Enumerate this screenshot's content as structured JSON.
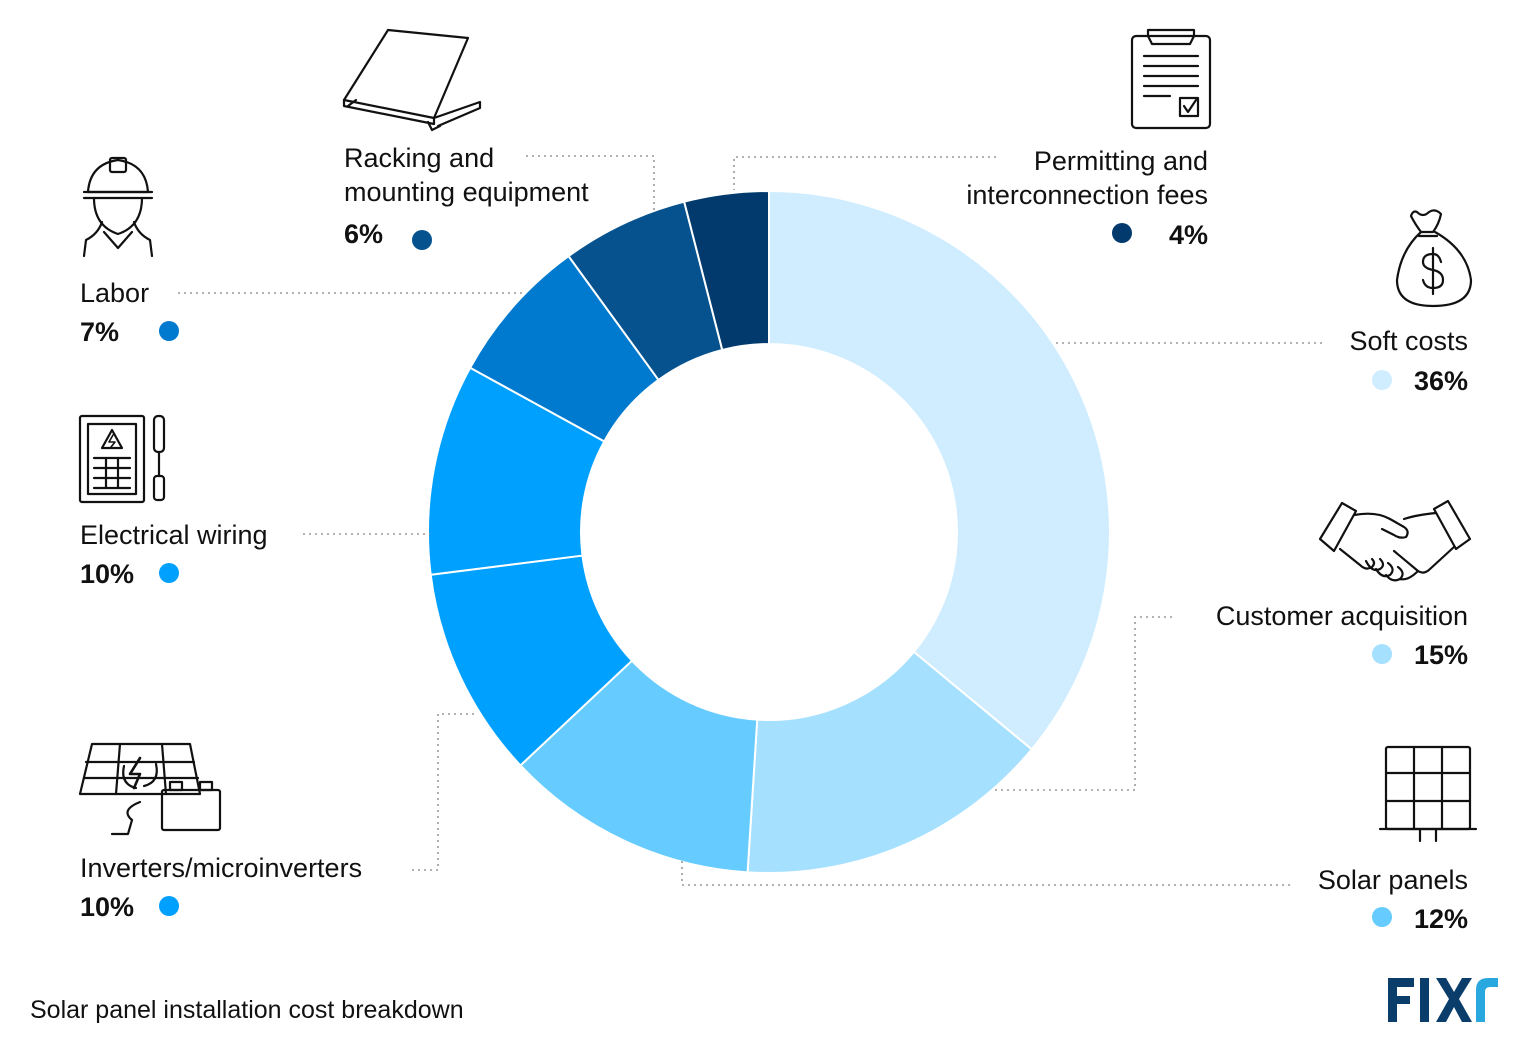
{
  "chart_data": {
    "type": "pie",
    "variant": "donut",
    "title": "Solar panel installation cost breakdown",
    "categories": [
      "Soft costs",
      "Customer acquisition",
      "Solar panels",
      "Inverters/microinverters",
      "Electrical wiring",
      "Labor",
      "Racking and mounting equipment",
      "Permitting and interconnection fees"
    ],
    "values": [
      36,
      15,
      12,
      10,
      10,
      7,
      6,
      4
    ],
    "value_labels": [
      "36%",
      "15%",
      "12%",
      "10%",
      "10%",
      "7%",
      "6%",
      "4%"
    ],
    "colors": [
      "#CFEDFF",
      "#A6E0FF",
      "#66CCFF",
      "#00A0FF",
      "#00A0FF",
      "#007ACF",
      "#05528F",
      "#023A6E"
    ],
    "label_lines": [
      [
        "Soft costs"
      ],
      [
        "Customer acquisition"
      ],
      [
        "Solar panels"
      ],
      [
        "Inverters/microinverters"
      ],
      [
        "Electrical wiring"
      ],
      [
        "Labor"
      ],
      [
        "Racking and",
        "mounting equipment"
      ],
      [
        "Permitting and",
        "interconnection fees"
      ]
    ],
    "icons": [
      "money-bag-icon",
      "handshake-icon",
      "solar-panel-icon",
      "inverter-icon",
      "electrical-panel-icon",
      "worker-helmet-icon",
      "racking-mount-icon",
      "clipboard-icon"
    ]
  },
  "footer": {
    "caption": "Solar panel installation cost breakdown",
    "brand": "FIXr"
  },
  "colors": {
    "separator": "#ffffff",
    "leader": "#9a9a9a",
    "brand_dark": "#0B3D6B",
    "brand_light": "#29A8E0"
  }
}
